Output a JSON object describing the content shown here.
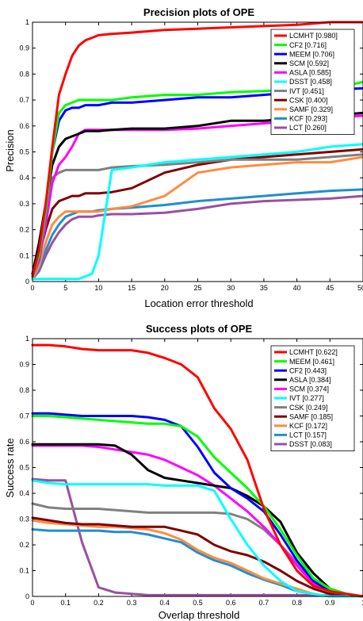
{
  "chart_data": [
    {
      "type": "line",
      "title": "Precision plots of OPE",
      "xlabel": "Location error threshold",
      "ylabel": "Precision",
      "xlim": [
        0,
        50
      ],
      "ylim": [
        0,
        1
      ],
      "xticks": [
        0,
        5,
        10,
        15,
        20,
        25,
        30,
        35,
        40,
        45,
        50
      ],
      "xtick_labels": [
        "0",
        "5",
        "10",
        "15",
        "20",
        "25",
        "30",
        "35",
        "40",
        "45",
        "50"
      ],
      "yticks": [
        0,
        0.1,
        0.2,
        0.3,
        0.4,
        0.5,
        0.6,
        0.7,
        0.8,
        0.9,
        1
      ],
      "ytick_labels": [
        "0",
        "0.1",
        "0.2",
        "0.3",
        "0.4",
        "0.5",
        "0.6",
        "0.7",
        "0.8",
        "0.9",
        "1"
      ],
      "legend_position": "top-right",
      "x": [
        0,
        1,
        2,
        3,
        4,
        5,
        6,
        7,
        8,
        9,
        10,
        12,
        15,
        20,
        25,
        30,
        35,
        40,
        45,
        50
      ],
      "series": [
        {
          "name": "LCMHT [0.980]",
          "color": "#ff0000",
          "values": [
            0.02,
            0.12,
            0.3,
            0.52,
            0.72,
            0.8,
            0.87,
            0.91,
            0.93,
            0.94,
            0.95,
            0.955,
            0.96,
            0.97,
            0.975,
            0.98,
            0.985,
            0.99,
            1.0,
            1.0
          ]
        },
        {
          "name": "CF2 [0.716]",
          "color": "#00ff00",
          "values": [
            0.02,
            0.1,
            0.27,
            0.5,
            0.65,
            0.68,
            0.69,
            0.7,
            0.7,
            0.7,
            0.7,
            0.7,
            0.71,
            0.72,
            0.72,
            0.73,
            0.735,
            0.74,
            0.74,
            0.77
          ]
        },
        {
          "name": "MEEM [0.706]",
          "color": "#0000ff",
          "values": [
            0.02,
            0.1,
            0.27,
            0.5,
            0.62,
            0.66,
            0.67,
            0.67,
            0.68,
            0.68,
            0.68,
            0.69,
            0.69,
            0.7,
            0.71,
            0.71,
            0.72,
            0.73,
            0.74,
            0.745
          ]
        },
        {
          "name": "SCM [0.592]",
          "color": "#000000",
          "values": [
            0.03,
            0.15,
            0.3,
            0.45,
            0.52,
            0.55,
            0.56,
            0.57,
            0.58,
            0.58,
            0.58,
            0.585,
            0.59,
            0.59,
            0.6,
            0.62,
            0.62,
            0.63,
            0.64,
            0.65
          ]
        },
        {
          "name": "ASLA [0.585]",
          "color": "#ff00ff",
          "values": [
            0.02,
            0.08,
            0.22,
            0.38,
            0.45,
            0.48,
            0.52,
            0.57,
            0.585,
            0.585,
            0.585,
            0.585,
            0.585,
            0.585,
            0.59,
            0.6,
            0.61,
            0.62,
            0.63,
            0.64
          ]
        },
        {
          "name": "DSST [0.458]",
          "color": "#00ffff",
          "values": [
            0.01,
            0.01,
            0.01,
            0.01,
            0.01,
            0.01,
            0.01,
            0.01,
            0.02,
            0.03,
            0.1,
            0.43,
            0.44,
            0.46,
            0.47,
            0.48,
            0.49,
            0.5,
            0.52,
            0.53
          ]
        },
        {
          "name": "IVT [0.451]",
          "color": "#808080",
          "values": [
            0.02,
            0.1,
            0.25,
            0.4,
            0.42,
            0.43,
            0.43,
            0.43,
            0.43,
            0.43,
            0.43,
            0.44,
            0.445,
            0.45,
            0.46,
            0.47,
            0.47,
            0.47,
            0.48,
            0.49
          ]
        },
        {
          "name": "CSK [0.400]",
          "color": "#800000",
          "values": [
            0.03,
            0.1,
            0.2,
            0.28,
            0.31,
            0.32,
            0.33,
            0.33,
            0.34,
            0.34,
            0.34,
            0.345,
            0.36,
            0.42,
            0.45,
            0.47,
            0.48,
            0.49,
            0.5,
            0.51
          ]
        },
        {
          "name": "SAMF [0.329]",
          "color": "#ff8c40",
          "values": [
            0.01,
            0.06,
            0.15,
            0.22,
            0.25,
            0.27,
            0.27,
            0.27,
            0.27,
            0.27,
            0.27,
            0.28,
            0.29,
            0.33,
            0.42,
            0.44,
            0.45,
            0.46,
            0.46,
            0.48
          ]
        },
        {
          "name": "KCF [0.293]",
          "color": "#1f8fcf",
          "values": [
            0.01,
            0.05,
            0.12,
            0.18,
            0.22,
            0.25,
            0.26,
            0.27,
            0.27,
            0.27,
            0.275,
            0.28,
            0.285,
            0.295,
            0.31,
            0.32,
            0.33,
            0.34,
            0.35,
            0.355
          ]
        },
        {
          "name": "LCT [0.260]",
          "color": "#9b4fa0",
          "values": [
            0.01,
            0.04,
            0.1,
            0.15,
            0.19,
            0.22,
            0.24,
            0.25,
            0.25,
            0.25,
            0.255,
            0.26,
            0.26,
            0.265,
            0.28,
            0.3,
            0.31,
            0.315,
            0.32,
            0.33
          ]
        }
      ]
    },
    {
      "type": "line",
      "title": "Success plots of OPE",
      "xlabel": "Overlap threshold",
      "ylabel": "Success rate",
      "xlim": [
        0,
        1
      ],
      "ylim": [
        0,
        1
      ],
      "xticks": [
        0,
        0.1,
        0.2,
        0.3,
        0.4,
        0.5,
        0.6,
        0.7,
        0.8,
        0.9,
        1
      ],
      "xtick_labels": [
        "0",
        "0.1",
        "0.2",
        "0.3",
        "0.4",
        "0.5",
        "0.6",
        "0.7",
        "0.8",
        "0.9",
        "1"
      ],
      "yticks": [
        0,
        0.1,
        0.2,
        0.3,
        0.4,
        0.5,
        0.6,
        0.7,
        0.8,
        0.9,
        1
      ],
      "ytick_labels": [
        "0",
        "0.1",
        "0.2",
        "0.3",
        "0.4",
        "0.5",
        "0.6",
        "0.7",
        "0.8",
        "0.9",
        "1"
      ],
      "legend_position": "top-right",
      "x": [
        0,
        0.05,
        0.1,
        0.15,
        0.2,
        0.25,
        0.3,
        0.35,
        0.4,
        0.45,
        0.5,
        0.55,
        0.6,
        0.65,
        0.7,
        0.75,
        0.8,
        0.85,
        0.9,
        0.95,
        1.0
      ],
      "series": [
        {
          "name": "LCMHT [0.622]",
          "color": "#ff0000",
          "values": [
            0.975,
            0.975,
            0.97,
            0.96,
            0.955,
            0.955,
            0.955,
            0.945,
            0.925,
            0.9,
            0.85,
            0.73,
            0.65,
            0.53,
            0.34,
            0.2,
            0.1,
            0.04,
            0.02,
            0.01,
            0.0
          ]
        },
        {
          "name": "MEEM [0.461]",
          "color": "#00ff00",
          "values": [
            0.7,
            0.7,
            0.695,
            0.69,
            0.685,
            0.68,
            0.675,
            0.67,
            0.67,
            0.66,
            0.62,
            0.54,
            0.48,
            0.42,
            0.35,
            0.26,
            0.16,
            0.07,
            0.03,
            0.01,
            0.0
          ]
        },
        {
          "name": "CF2 [0.443]",
          "color": "#0000ff",
          "values": [
            0.71,
            0.71,
            0.705,
            0.7,
            0.7,
            0.7,
            0.7,
            0.695,
            0.685,
            0.66,
            0.58,
            0.48,
            0.42,
            0.38,
            0.33,
            0.24,
            0.14,
            0.06,
            0.02,
            0.01,
            0.0
          ]
        },
        {
          "name": "ASLA [0.384]",
          "color": "#000000",
          "values": [
            0.59,
            0.59,
            0.59,
            0.59,
            0.59,
            0.585,
            0.55,
            0.49,
            0.46,
            0.45,
            0.44,
            0.43,
            0.42,
            0.39,
            0.35,
            0.29,
            0.17,
            0.09,
            0.03,
            0.01,
            0.0
          ]
        },
        {
          "name": "SCM [0.374]",
          "color": "#ff00ff",
          "values": [
            0.585,
            0.585,
            0.585,
            0.585,
            0.58,
            0.57,
            0.56,
            0.55,
            0.53,
            0.5,
            0.47,
            0.43,
            0.38,
            0.33,
            0.27,
            0.2,
            0.12,
            0.05,
            0.02,
            0.01,
            0.0
          ]
        },
        {
          "name": "IVT [0.277]",
          "color": "#00ffff",
          "values": [
            0.45,
            0.44,
            0.435,
            0.435,
            0.435,
            0.435,
            0.435,
            0.435,
            0.43,
            0.43,
            0.43,
            0.41,
            0.3,
            0.2,
            0.12,
            0.06,
            0.02,
            0.01,
            0.0,
            0.0,
            0.0
          ]
        },
        {
          "name": "CSK [0.249]",
          "color": "#808080",
          "values": [
            0.36,
            0.345,
            0.34,
            0.34,
            0.34,
            0.335,
            0.33,
            0.325,
            0.325,
            0.325,
            0.325,
            0.325,
            0.32,
            0.3,
            0.26,
            0.2,
            0.13,
            0.06,
            0.02,
            0.01,
            0.0
          ]
        },
        {
          "name": "SAMF [0.185]",
          "color": "#800000",
          "values": [
            0.305,
            0.295,
            0.285,
            0.28,
            0.28,
            0.275,
            0.27,
            0.27,
            0.27,
            0.255,
            0.24,
            0.2,
            0.175,
            0.16,
            0.135,
            0.1,
            0.06,
            0.03,
            0.01,
            0.0,
            0.0
          ]
        },
        {
          "name": "KCF [0.172]",
          "color": "#ff8c40",
          "values": [
            0.295,
            0.285,
            0.28,
            0.275,
            0.27,
            0.27,
            0.265,
            0.26,
            0.245,
            0.22,
            0.18,
            0.15,
            0.13,
            0.1,
            0.07,
            0.05,
            0.03,
            0.01,
            0.0,
            0.0,
            0.0
          ]
        },
        {
          "name": "LCT [0.157]",
          "color": "#1f8fcf",
          "values": [
            0.26,
            0.255,
            0.255,
            0.255,
            0.255,
            0.25,
            0.25,
            0.24,
            0.225,
            0.21,
            0.17,
            0.14,
            0.12,
            0.09,
            0.065,
            0.045,
            0.02,
            0.01,
            0.0,
            0.0,
            0.0
          ]
        },
        {
          "name": "DSST [0.083]",
          "color": "#9b4fa0",
          "values": [
            0.455,
            0.45,
            0.45,
            0.21,
            0.035,
            0.015,
            0.01,
            0.005,
            0.005,
            0.005,
            0.005,
            0.005,
            0.005,
            0.005,
            0.005,
            0.005,
            0.005,
            0.005,
            0.005,
            0.005,
            0.0
          ]
        }
      ]
    }
  ]
}
